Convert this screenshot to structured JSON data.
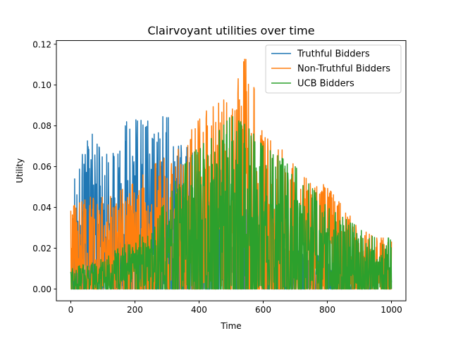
{
  "chart_data": {
    "type": "line",
    "title": "Clairvoyant utilities over time",
    "xlabel": "Time",
    "ylabel": "Utility",
    "xlim": [
      -45,
      1045
    ],
    "ylim": [
      -0.0058,
      0.1218
    ],
    "xticks": [
      0,
      200,
      400,
      600,
      800,
      1000
    ],
    "xtick_labels": [
      "0",
      "200",
      "400",
      "600",
      "800",
      "1000"
    ],
    "yticks": [
      0.0,
      0.02,
      0.04,
      0.06,
      0.08,
      0.1,
      0.12
    ],
    "ytick_labels": [
      "0.00",
      "0.02",
      "0.04",
      "0.06",
      "0.08",
      "0.10",
      "0.12"
    ],
    "grid": false,
    "legend_position": "top-right",
    "x_range": [
      0,
      1000
    ],
    "series": [
      {
        "name": "Truthful Bidders",
        "color": "#1f77b4",
        "envelope": [
          [
            0,
            0.048
          ],
          [
            60,
            0.078
          ],
          [
            100,
            0.066
          ],
          [
            150,
            0.07
          ],
          [
            180,
            0.085
          ],
          [
            200,
            0.083
          ],
          [
            260,
            0.082
          ],
          [
            295,
            0.091
          ],
          [
            330,
            0.072
          ],
          [
            380,
            0.068
          ],
          [
            420,
            0.05
          ],
          [
            480,
            0.06
          ],
          [
            520,
            0.045
          ],
          [
            560,
            0.038
          ],
          [
            600,
            0.03
          ],
          [
            640,
            0.025
          ],
          [
            700,
            0.02
          ],
          [
            800,
            0.015
          ],
          [
            900,
            0.012
          ],
          [
            1000,
            0.012
          ]
        ]
      },
      {
        "name": "Non-Truthful Bidders",
        "color": "#ff7f0e",
        "envelope": [
          [
            0,
            0.04
          ],
          [
            60,
            0.045
          ],
          [
            100,
            0.045
          ],
          [
            150,
            0.048
          ],
          [
            200,
            0.052
          ],
          [
            250,
            0.06
          ],
          [
            300,
            0.065
          ],
          [
            350,
            0.07
          ],
          [
            400,
            0.085
          ],
          [
            450,
            0.09
          ],
          [
            500,
            0.095
          ],
          [
            550,
            0.116
          ],
          [
            600,
            0.075
          ],
          [
            650,
            0.07
          ],
          [
            700,
            0.06
          ],
          [
            750,
            0.055
          ],
          [
            800,
            0.05
          ],
          [
            850,
            0.04
          ],
          [
            900,
            0.03
          ],
          [
            950,
            0.025
          ],
          [
            1000,
            0.025
          ]
        ]
      },
      {
        "name": "UCB Bidders",
        "color": "#2ca02c",
        "envelope": [
          [
            0,
            0.01
          ],
          [
            100,
            0.015
          ],
          [
            200,
            0.025
          ],
          [
            250,
            0.03
          ],
          [
            300,
            0.045
          ],
          [
            350,
            0.06
          ],
          [
            400,
            0.07
          ],
          [
            450,
            0.075
          ],
          [
            500,
            0.085
          ],
          [
            550,
            0.08
          ],
          [
            600,
            0.07
          ],
          [
            650,
            0.065
          ],
          [
            700,
            0.06
          ],
          [
            750,
            0.05
          ],
          [
            800,
            0.04
          ],
          [
            850,
            0.035
          ],
          [
            900,
            0.03
          ],
          [
            950,
            0.025
          ],
          [
            1000,
            0.025
          ]
        ]
      }
    ]
  }
}
